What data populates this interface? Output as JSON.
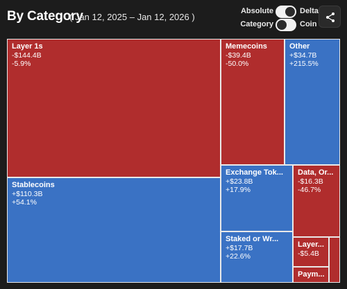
{
  "header": {
    "title": "By Category",
    "date_range": "( Jan 12, 2025 – Jan 12, 2026 )"
  },
  "toggles": {
    "mode_left": "Absolute",
    "mode_right": "Delta",
    "mode_selected": "Delta",
    "group_left": "Category",
    "group_right": "Coin",
    "group_selected": "Category"
  },
  "share_button": {
    "icon": "share-icon"
  },
  "colors": {
    "negative": "#b02d2d",
    "positive": "#3a72c4",
    "background": "#1c1c1c"
  },
  "chart_data": {
    "type": "treemap",
    "title": "By Category",
    "subtitle": "( Jan 12, 2025 – Jan 12, 2026 )",
    "items": [
      {
        "name": "Layer 1s",
        "delta": "-$144.4B",
        "pct": "-5.9%",
        "value": -144.4,
        "pct_value": -5.9
      },
      {
        "name": "Stablecoins",
        "delta": "+$110.3B",
        "pct": "+54.1%",
        "value": 110.3,
        "pct_value": 54.1
      },
      {
        "name": "Memecoins",
        "delta": "-$39.4B",
        "pct": "-50.0%",
        "value": -39.4,
        "pct_value": -50.0
      },
      {
        "name": "Other",
        "delta": "+$34.7B",
        "pct": "+215.5%",
        "value": 34.7,
        "pct_value": 215.5
      },
      {
        "name": "Exchange Tok...",
        "delta": "+$23.8B",
        "pct": "+17.9%",
        "value": 23.8,
        "pct_value": 17.9
      },
      {
        "name": "Staked or Wr...",
        "delta": "+$17.7B",
        "pct": "+22.6%",
        "value": 17.7,
        "pct_value": 22.6
      },
      {
        "name": "Data, Or...",
        "delta": "-$16.3B",
        "pct": "-46.7%",
        "value": -16.3,
        "pct_value": -46.7
      },
      {
        "name": "Layer...",
        "delta": "-$5.4B",
        "pct": "",
        "value": -5.4
      },
      {
        "name": "Paym...",
        "delta": "",
        "pct": "",
        "value": null
      },
      {
        "name": "",
        "delta": "",
        "pct": "",
        "value": null
      }
    ]
  }
}
